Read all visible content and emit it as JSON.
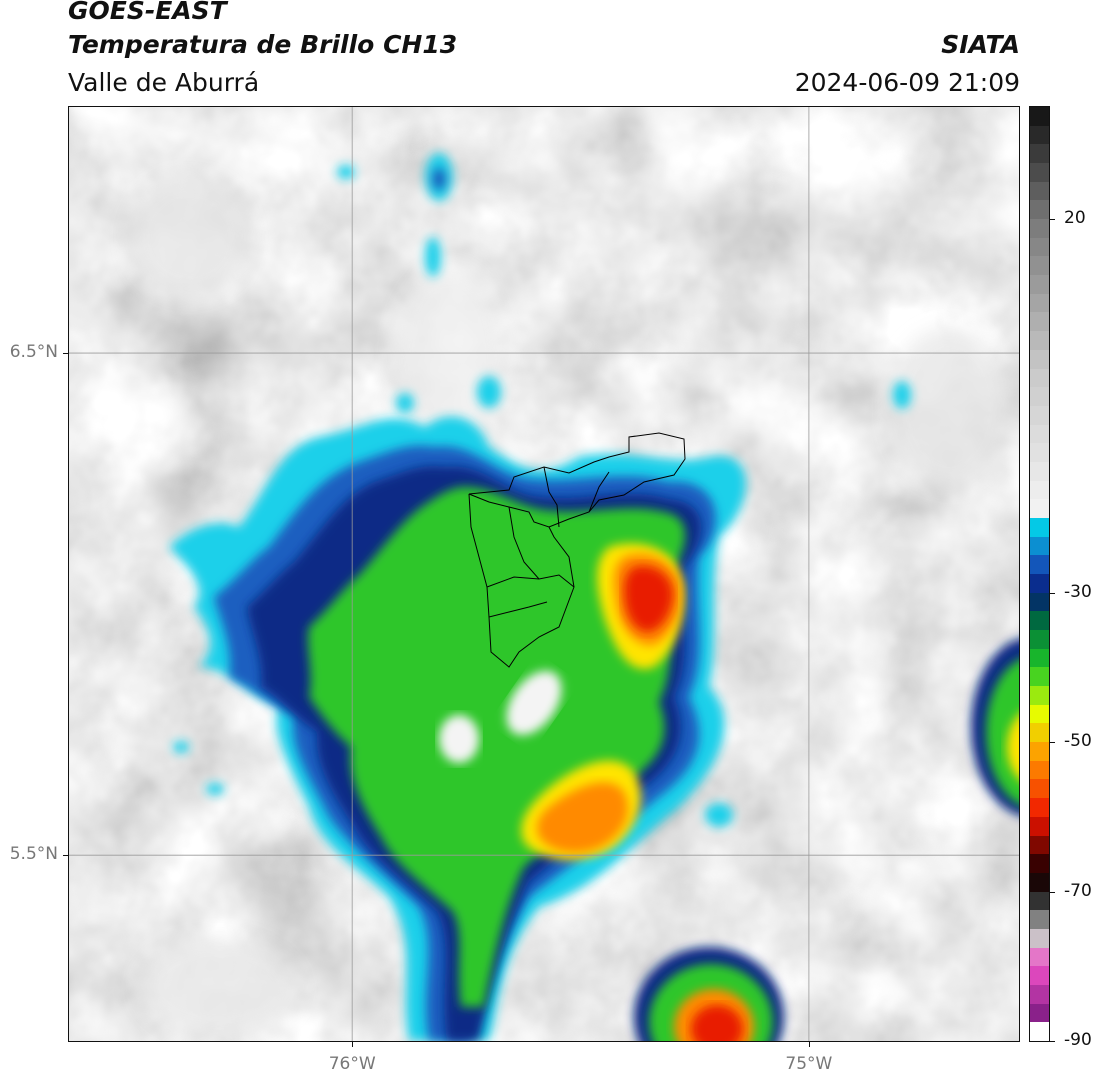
{
  "header": {
    "satellite": "GOES-EAST",
    "product": "Temperatura de Brillo CH13",
    "region": "Valle de Aburrá",
    "organization": "SIATA",
    "datetime": "2024-06-09 21:09"
  },
  "map": {
    "lat_range": [
      5.13,
      6.99
    ],
    "lon_range": [
      -76.62,
      -74.54
    ],
    "grid": true,
    "lat_ticks": [
      {
        "value": 6.5,
        "label": "6.5°N"
      },
      {
        "value": 5.5,
        "label": "5.5°N"
      }
    ],
    "lon_ticks": [
      {
        "value": -76.0,
        "label": "76°W"
      },
      {
        "value": -75.0,
        "label": "75°W"
      }
    ],
    "colors": {
      "cloud_light": "#ffffff",
      "cloud_gray": "#8c8c8c",
      "cyan": "#1ecbe6",
      "blue": "#1a4db0",
      "navy": "#0a1e78",
      "green": "#2fc62a",
      "yellow": "#ffe600",
      "orange": "#ff8a00",
      "red": "#ef1f00",
      "boundary": "#000000"
    }
  },
  "colorbar": {
    "range": [
      -90,
      35
    ],
    "orientation": "vertical",
    "placement": "right",
    "ticks": [
      {
        "value": 20,
        "label": "20"
      },
      {
        "value": -30,
        "label": "-30"
      },
      {
        "value": -50,
        "label": "-50"
      },
      {
        "value": -70,
        "label": "-70"
      },
      {
        "value": -90,
        "label": "-90"
      }
    ]
  }
}
